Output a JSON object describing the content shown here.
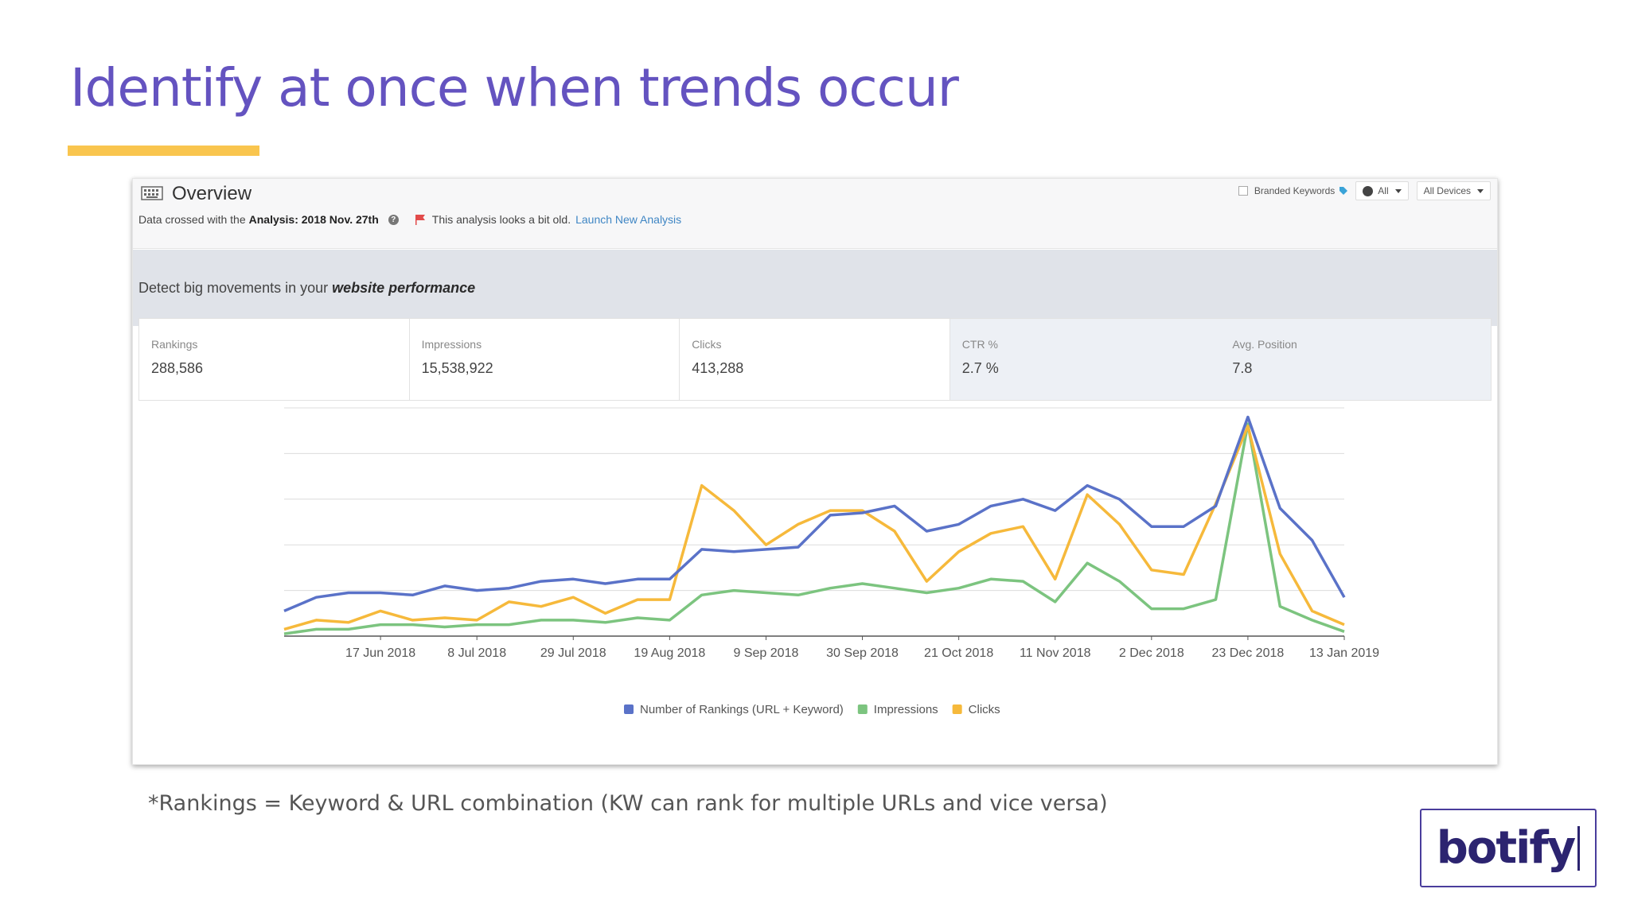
{
  "slide": {
    "title": "Identify at once when trends occur",
    "footnote": "*Rankings = Keyword & URL combination (KW can rank for multiple URLs and vice versa)",
    "logo": "botify",
    "accent": "#6453c0",
    "title_bar_color": "#f9c54e"
  },
  "header": {
    "title": "Overview",
    "data_prefix": "Data crossed with the",
    "analysis": "Analysis: 2018 Nov. 27th",
    "old_warning": "This analysis looks a bit old.",
    "launch_link": "Launch New Analysis",
    "branded_keywords": "Branded Keywords",
    "country": "All",
    "devices": "All Devices"
  },
  "band": {
    "prefix": "Detect big movements in your",
    "emphasis": "website performance"
  },
  "metrics": [
    {
      "label": "Rankings",
      "value": "288,586"
    },
    {
      "label": "Impressions",
      "value": "15,538,922"
    },
    {
      "label": "Clicks",
      "value": "413,288"
    },
    {
      "label": "CTR %",
      "value": "2.7 %"
    },
    {
      "label": "Avg. Position",
      "value": "7.8"
    }
  ],
  "chart_data": {
    "type": "line",
    "title": "",
    "xlabel": "",
    "ylabel": "",
    "ylim": [
      0,
      100
    ],
    "grid": true,
    "legend_position": "bottom",
    "x_ticks": [
      "17 Jun 2018",
      "8 Jul 2018",
      "29 Jul 2018",
      "19 Aug 2018",
      "9 Sep 2018",
      "30 Sep 2018",
      "21 Oct 2018",
      "11 Nov 2018",
      "2 Dec 2018",
      "23 Dec 2018",
      "13 Jan 2019"
    ],
    "series": [
      {
        "name": "Number of Rankings (URL + Keyword)",
        "color": "#5a72c8",
        "values": [
          11,
          17,
          19,
          19,
          18,
          22,
          20,
          21,
          24,
          25,
          23,
          25,
          25,
          38,
          37,
          38,
          39,
          53,
          54,
          57,
          46,
          49,
          57,
          60,
          55,
          66,
          60,
          48,
          48,
          57,
          96,
          56,
          42,
          17
        ]
      },
      {
        "name": "Impressions",
        "color": "#7cc47f",
        "values": [
          1,
          3,
          3,
          5,
          5,
          4,
          5,
          5,
          7,
          7,
          6,
          8,
          7,
          18,
          20,
          19,
          18,
          21,
          23,
          21,
          19,
          21,
          25,
          24,
          15,
          32,
          24,
          12,
          12,
          16,
          93,
          13,
          7,
          2
        ]
      },
      {
        "name": "Clicks",
        "color": "#f6b93b",
        "values": [
          3,
          7,
          6,
          11,
          7,
          8,
          7,
          15,
          13,
          17,
          10,
          16,
          16,
          66,
          55,
          40,
          49,
          55,
          55,
          46,
          24,
          37,
          45,
          48,
          25,
          62,
          49,
          29,
          27,
          58,
          92,
          36,
          11,
          5
        ]
      }
    ]
  }
}
